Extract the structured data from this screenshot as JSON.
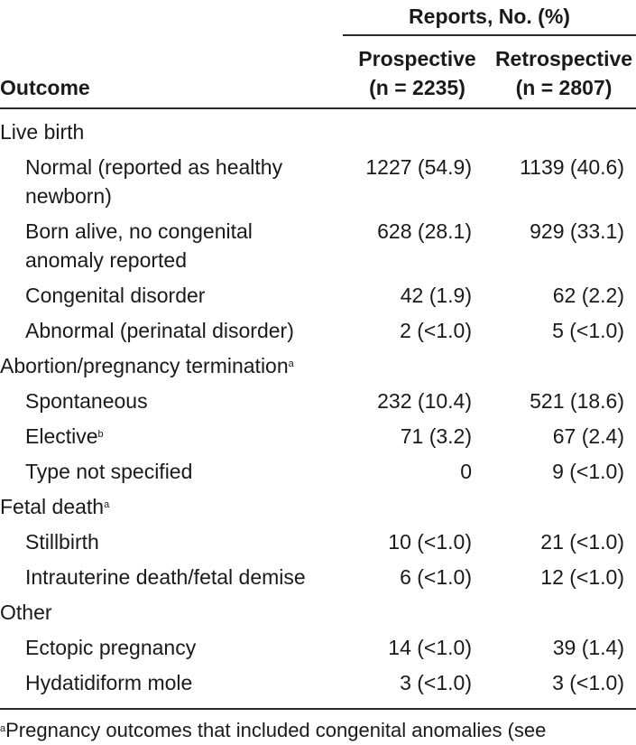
{
  "table": {
    "spanner_header": "Reports, No. (%)",
    "col_outcome": "Outcome",
    "col_prospective": "Prospective",
    "col_prospective_n": "(n = 2235)",
    "col_retrospective": "Retrospective",
    "col_retrospective_n": "(n = 2807)",
    "sections": [
      {
        "title": "Live birth",
        "sup": "",
        "rows": [
          {
            "label_lines": [
              "Normal (reported as healthy",
              "newborn)"
            ],
            "sup": "",
            "prospective": "1227 (54.9)",
            "retrospective": "1139 (40.6)"
          },
          {
            "label_lines": [
              "Born alive, no congenital",
              "anomaly reported"
            ],
            "sup": "",
            "prospective": "628 (28.1)",
            "retrospective": "929 (33.1)"
          },
          {
            "label_lines": [
              "Congenital disorder"
            ],
            "sup": "",
            "prospective": "42 (1.9)",
            "retrospective": "62 (2.2)"
          },
          {
            "label_lines": [
              "Abnormal (perinatal disorder)"
            ],
            "sup": "",
            "prospective": "2 (<1.0)",
            "retrospective": "5 (<1.0)"
          }
        ]
      },
      {
        "title": "Abortion/pregnancy termination",
        "sup": "a",
        "rows": [
          {
            "label_lines": [
              "Spontaneous"
            ],
            "sup": "",
            "prospective": "232 (10.4)",
            "retrospective": "521 (18.6)"
          },
          {
            "label_lines": [
              "Elective"
            ],
            "sup": "b",
            "prospective": "71 (3.2)",
            "retrospective": "67 (2.4)"
          },
          {
            "label_lines": [
              "Type not specified"
            ],
            "sup": "",
            "prospective": "0",
            "retrospective": "9 (<1.0)"
          }
        ]
      },
      {
        "title": "Fetal death",
        "sup": "a",
        "rows": [
          {
            "label_lines": [
              "Stillbirth"
            ],
            "sup": "",
            "prospective": "10 (<1.0)",
            "retrospective": "21 (<1.0)"
          },
          {
            "label_lines": [
              "Intrauterine death/fetal demise"
            ],
            "sup": "",
            "prospective": "6 (<1.0)",
            "retrospective": "12 (<1.0)"
          }
        ]
      },
      {
        "title": "Other",
        "sup": "",
        "rows": [
          {
            "label_lines": [
              "Ectopic pregnancy"
            ],
            "sup": "",
            "prospective": "14 (<1.0)",
            "retrospective": "39 (1.4)"
          },
          {
            "label_lines": [
              "Hydatidiform mole"
            ],
            "sup": "",
            "prospective": "3 (<1.0)",
            "retrospective": "3 (<1.0)"
          }
        ]
      }
    ],
    "footnote_sup": "a",
    "footnote_text": "Pregnancy outcomes that included congenital anomalies (see"
  }
}
